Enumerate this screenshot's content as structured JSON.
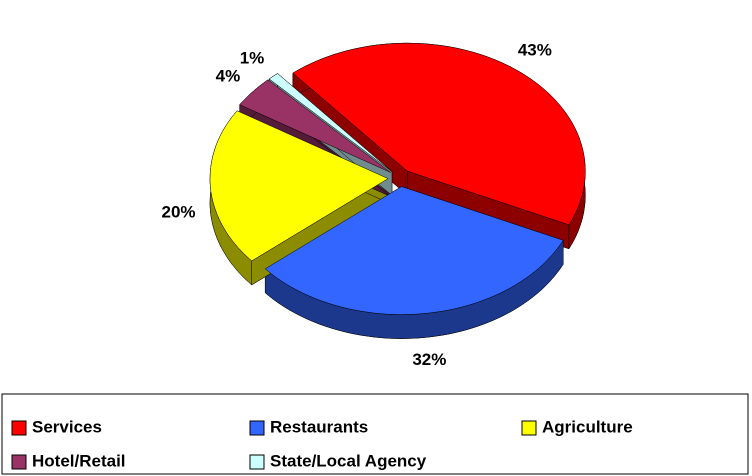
{
  "chart_data": {
    "type": "pie",
    "categories": [
      "Services",
      "Restaurants",
      "Agriculture",
      "Hotel/Retail",
      "State/Local Agency"
    ],
    "values": [
      43,
      32,
      20,
      4,
      1
    ],
    "value_labels": [
      "43%",
      "32%",
      "20%",
      "4%",
      "1%"
    ],
    "colors": [
      "#ff0000",
      "#3366ff",
      "#ffff00",
      "#993366",
      "#ccffff"
    ],
    "legend": "bottom"
  }
}
